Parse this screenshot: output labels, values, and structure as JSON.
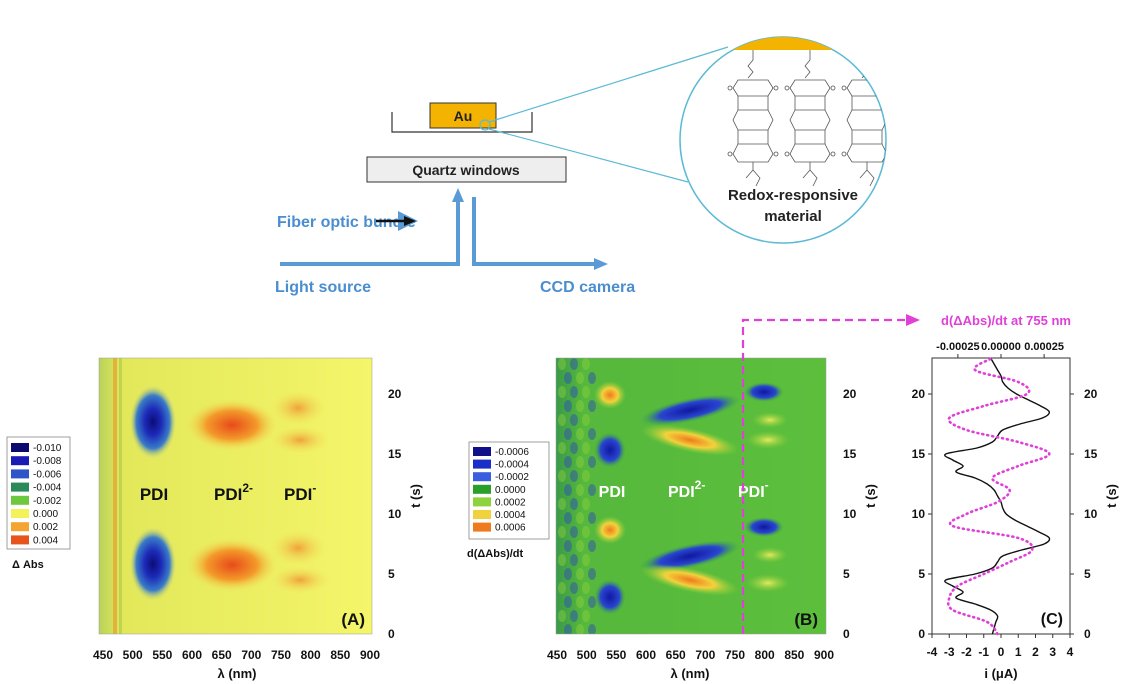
{
  "schematic": {
    "au_label": "Au",
    "quartz_label": "Quartz windows",
    "fiber_label": "Fiber optic bundle",
    "light_source_label": "Light source",
    "ccd_label": "CCD camera",
    "material_label_line1": "Redox-responsive",
    "material_label_line2": "material",
    "colors": {
      "gold": "#f5b301",
      "blue": "#5b9bd5",
      "cyan_line": "#5bbad5"
    }
  },
  "panel_a": {
    "tag": "(A)",
    "x_axis_label": "λ (nm)",
    "x_ticks": [
      "450",
      "500",
      "550",
      "600",
      "650",
      "700",
      "750",
      "800",
      "850",
      "900"
    ],
    "y_axis_label": "t (s)",
    "y_ticks": [
      "0",
      "5",
      "10",
      "15",
      "20"
    ],
    "band_labels": {
      "pdi": "PDI",
      "pdi2_base": "PDI",
      "pdi2_sup": "2-",
      "pdim_base": "PDI",
      "pdim_sup": "-"
    },
    "legend_title": "Δ Abs",
    "legend": [
      {
        "label": "-0.010",
        "color": "#0a0a6e"
      },
      {
        "label": "-0.008",
        "color": "#1a1ab4"
      },
      {
        "label": "-0.006",
        "color": "#2e56c8"
      },
      {
        "label": "-0.004",
        "color": "#2a8a5a"
      },
      {
        "label": "-0.002",
        "color": "#6cc83c"
      },
      {
        "label": "0.000",
        "color": "#f2f25a"
      },
      {
        "label": "0.002",
        "color": "#f3a431"
      },
      {
        "label": "0.004",
        "color": "#e8551c"
      }
    ]
  },
  "panel_b": {
    "tag": "(B)",
    "x_axis_label": "λ (nm)",
    "x_ticks": [
      "450",
      "500",
      "550",
      "600",
      "650",
      "700",
      "750",
      "800",
      "850",
      "900"
    ],
    "y_axis_label": "t (s)",
    "y_ticks": [
      "0",
      "5",
      "10",
      "15",
      "20"
    ],
    "band_labels": {
      "pdi": "PDI",
      "pdi2_base": "PDI",
      "pdi2_sup": "2-",
      "pdim_base": "PDI",
      "pdim_sup": "-"
    },
    "legend_title": "d(ΔAbs)/dt",
    "legend": [
      {
        "label": "-0.0006",
        "color": "#10108a"
      },
      {
        "label": "-0.0004",
        "color": "#1a2ec8"
      },
      {
        "label": "-0.0002",
        "color": "#3a5ee0"
      },
      {
        "label": "0.0000",
        "color": "#2aa02a"
      },
      {
        "label": "0.0002",
        "color": "#8ed23c"
      },
      {
        "label": "0.0004",
        "color": "#f2d23c"
      },
      {
        "label": "0.0006",
        "color": "#f07a1e"
      }
    ],
    "marker_wavelength_nm": 755,
    "marker_color": "#e040d8"
  },
  "panel_c": {
    "tag": "(C)",
    "top_axis_label": "d(ΔAbs)/dt at 755 nm",
    "top_ticks": [
      "-0.00025",
      "0.00000",
      "0.00025"
    ],
    "x_axis_label": "i (μA)",
    "x_ticks": [
      "-4",
      "-3",
      "-2",
      "-1",
      "0",
      "1",
      "2",
      "3",
      "4"
    ],
    "y_axis_label": "t (s)",
    "y_ticks_left": [
      "0",
      "5",
      "10",
      "15",
      "20"
    ],
    "y_ticks_right": [
      "0",
      "5",
      "10",
      "15",
      "20"
    ]
  },
  "chart_data": [
    {
      "type": "line",
      "panel": "C",
      "series": [
        {
          "axis": "top",
          "t": [
            0,
            1,
            2,
            3,
            4,
            5,
            6,
            7,
            8,
            9,
            10,
            11,
            12,
            13,
            14,
            15,
            16,
            17,
            18,
            19,
            20,
            21,
            22,
            23
          ],
          "values": [
            -2e-05,
            -8e-05,
            -0.00028,
            -0.0003,
            -0.00025,
            -0.0001,
            5e-05,
            0.00018,
            0.0001,
            -0.00028,
            -0.0002,
            -2e-05,
            5e-05,
            -5e-05,
            0.0001,
            0.00028,
            0.0001,
            -0.0002,
            -0.0003,
            -0.0001,
            0.00015,
            0.0001,
            -0.00015,
            -5e-05
          ]
        },
        {
          "axis": "bottom",
          "t": [
            0,
            0.5,
            1,
            1.5,
            2,
            2.5,
            3,
            3.5,
            4,
            4.5,
            5,
            5.5,
            6,
            6.5,
            7,
            7.5,
            8,
            8.5,
            9,
            9.5,
            10,
            10.5,
            11,
            11.5,
            12,
            12.5,
            13,
            13.5,
            14,
            14.5,
            15,
            15.5,
            16,
            16.5,
            17,
            17.5,
            18,
            18.5,
            19,
            19.5,
            20,
            20.5,
            21,
            21.5,
            22,
            22.5,
            23
          ],
          "values": [
            -0.5,
            -0.4,
            -0.3,
            -0.2,
            -0.6,
            -1.5,
            -2.6,
            -2.2,
            -2.8,
            -3.2,
            -1.5,
            -0.5,
            -0.2,
            0.1,
            1.2,
            2.5,
            2.8,
            2.2,
            1.5,
            0.8,
            0.3,
            0.1,
            0.0,
            -0.2,
            -0.4,
            -0.8,
            -1.5,
            -2.6,
            -2.2,
            -2.8,
            -3.2,
            -1.4,
            -0.5,
            -0.2,
            0.1,
            1.1,
            2.4,
            2.8,
            2.3,
            1.6,
            0.9,
            0.4,
            0.1,
            0.0,
            -0.2,
            -0.4,
            -0.6
          ]
        }
      ],
      "top_xlim": [
        -0.0004,
        0.0004
      ],
      "bottom_xlim": [
        -4,
        4
      ],
      "ylim": [
        0,
        23
      ]
    }
  ]
}
